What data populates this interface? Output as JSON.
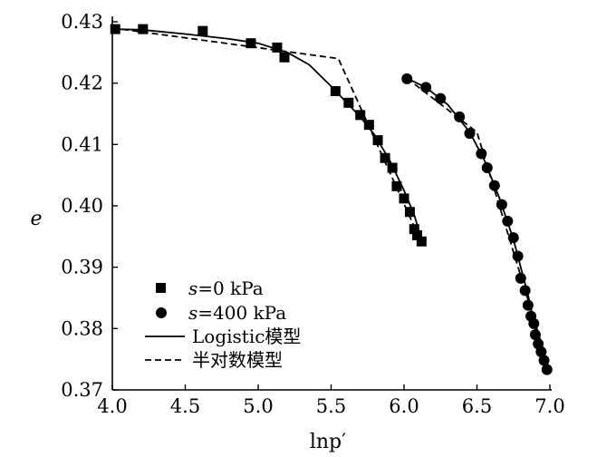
{
  "chart_data": {
    "type": "scatter",
    "xlabel": "lnp′",
    "ylabel": "e",
    "xlim": [
      4.0,
      7.0
    ],
    "ylim": [
      0.37,
      0.43
    ],
    "x_ticks": [
      "4.0",
      "4.5",
      "5.0",
      "5.5",
      "6.0",
      "6.5",
      "7.0"
    ],
    "y_ticks": [
      "0.37",
      "0.38",
      "0.39",
      "0.40",
      "0.41",
      "0.42",
      "0.43"
    ],
    "grid": false,
    "legend_position": "bottom-left",
    "legend": [
      {
        "label": "s=0 kPa",
        "marker": "square"
      },
      {
        "label": "s=400 kPa",
        "marker": "circle"
      },
      {
        "label": "Logistic模型",
        "line": "solid"
      },
      {
        "label": "半对数模型",
        "line": "dashed"
      }
    ],
    "series": [
      {
        "name": "s=0 kPa",
        "kind": "scatter",
        "marker": "square",
        "x": [
          4.02,
          4.21,
          4.62,
          4.95,
          5.13,
          5.18,
          5.53,
          5.62,
          5.7,
          5.76,
          5.82,
          5.87,
          5.92,
          5.95,
          6.0,
          6.04,
          6.07,
          6.09,
          6.12
        ],
        "y": [
          0.4288,
          0.4288,
          0.4285,
          0.4265,
          0.4258,
          0.4242,
          0.4187,
          0.4168,
          0.4148,
          0.4132,
          0.4107,
          0.4078,
          0.4062,
          0.4032,
          0.4012,
          0.399,
          0.3962,
          0.3952,
          0.3942
        ]
      },
      {
        "name": "s=400 kPa",
        "kind": "scatter",
        "marker": "circle",
        "x": [
          6.02,
          6.15,
          6.25,
          6.38,
          6.45,
          6.53,
          6.57,
          6.62,
          6.67,
          6.71,
          6.75,
          6.78,
          6.8,
          6.83,
          6.85,
          6.87,
          6.89,
          6.9,
          6.92,
          6.94,
          6.96,
          6.98
        ],
        "y": [
          0.4207,
          0.4193,
          0.4175,
          0.4145,
          0.4118,
          0.4085,
          0.4062,
          0.4033,
          0.4002,
          0.3975,
          0.3948,
          0.3918,
          0.3882,
          0.3862,
          0.3838,
          0.382,
          0.3808,
          0.379,
          0.3775,
          0.3762,
          0.3748,
          0.3733
        ]
      },
      {
        "name": "Logistic模型",
        "kind": "line",
        "dash": "solid",
        "segments": [
          {
            "x": [
              4.0,
              4.2,
              4.5,
              4.8,
              5.0,
              5.2,
              5.35,
              5.5,
              5.6,
              5.7,
              5.8,
              5.9,
              6.0,
              6.07,
              6.12
            ],
            "y": [
              0.4288,
              0.4287,
              0.428,
              0.4272,
              0.4265,
              0.425,
              0.423,
              0.4195,
              0.417,
              0.4145,
              0.4115,
              0.4075,
              0.4025,
              0.3985,
              0.3945
            ]
          },
          {
            "x": [
              6.02,
              6.15,
              6.3,
              6.45,
              6.55,
              6.65,
              6.75,
              6.85,
              6.92,
              7.0
            ],
            "y": [
              0.4208,
              0.4193,
              0.4165,
              0.412,
              0.4075,
              0.4015,
              0.3945,
              0.3855,
              0.378,
              0.373
            ]
          }
        ]
      },
      {
        "name": "半对数模型",
        "kind": "line",
        "dash": "dashed",
        "segments": [
          {
            "x": [
              4.0,
              5.55,
              6.12
            ],
            "y": [
              0.429,
              0.424,
              0.394
            ]
          },
          {
            "x": [
              6.02,
              6.5,
              7.0
            ],
            "y": [
              0.4208,
              0.412,
              0.373
            ]
          }
        ]
      }
    ]
  }
}
